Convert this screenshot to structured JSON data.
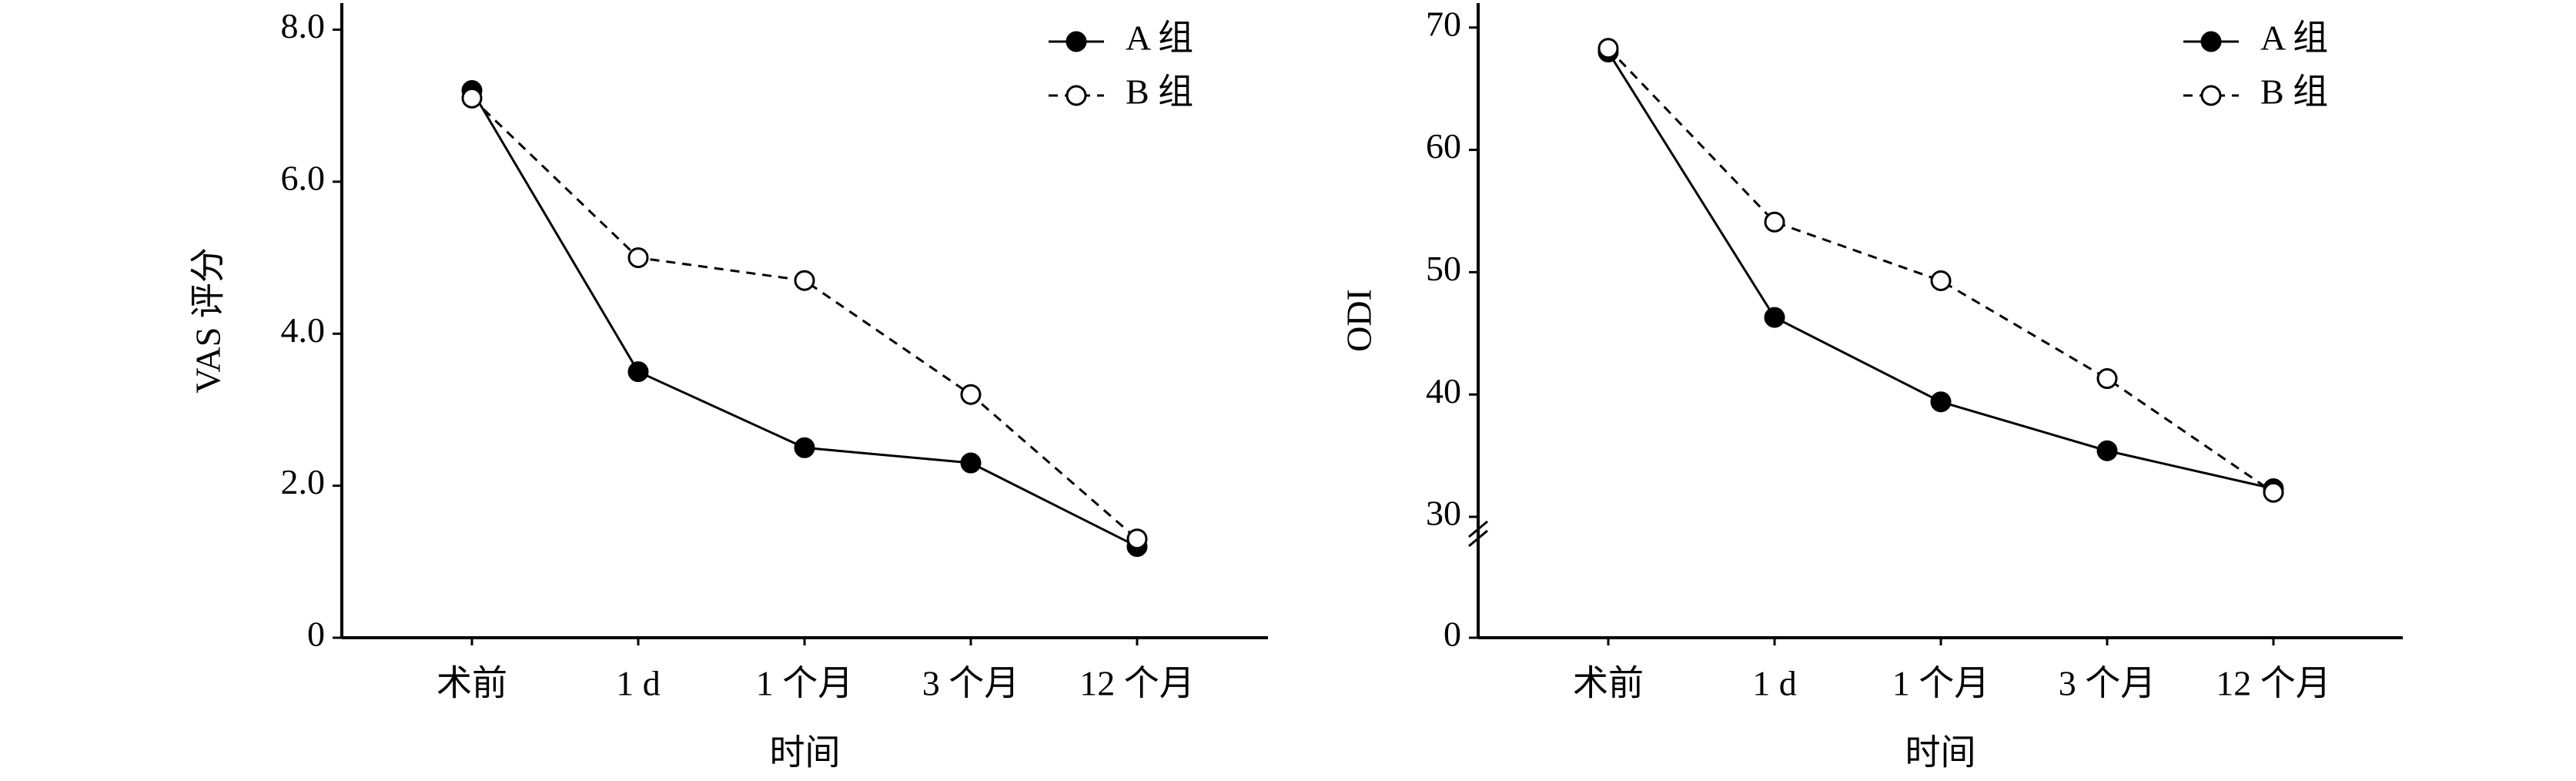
{
  "chart_data": [
    {
      "type": "line",
      "xlabel": "时间",
      "ylabel": "VAS 评分",
      "categories": [
        "术前",
        "1 d",
        "1 个月",
        "3 个月",
        "12 个月"
      ],
      "series": [
        {
          "name": "A 组",
          "color": "#000000",
          "marker": "filled",
          "dashed": false,
          "values": [
            7.2,
            3.5,
            2.5,
            2.3,
            1.2
          ]
        },
        {
          "name": "B 组",
          "color": "#000000",
          "marker": "open",
          "dashed": true,
          "values": [
            7.1,
            5.0,
            4.7,
            3.2,
            1.3
          ]
        }
      ],
      "ylim": [
        0,
        8.35
      ],
      "yticks": [
        0,
        {
          "value": 2,
          "label": "2.0"
        },
        {
          "value": 4,
          "label": "4.0"
        },
        {
          "value": 6,
          "label": "6.0"
        },
        {
          "value": 8,
          "label": "8.0"
        }
      ],
      "legend": "upper right",
      "grid": false
    },
    {
      "type": "line",
      "xlabel": "时间",
      "ylabel": "ODI",
      "categories": [
        "术前",
        "1 d",
        "1 个月",
        "3 个月",
        "12 个月"
      ],
      "series": [
        {
          "name": "A 组",
          "color": "#000000",
          "marker": "filled",
          "dashed": false,
          "values": [
            68,
            46.3,
            39.4,
            35.4,
            32.3
          ]
        },
        {
          "name": "B 组",
          "color": "#000000",
          "marker": "open",
          "dashed": true,
          "values": [
            68.3,
            54.1,
            49.3,
            41.3,
            32.0
          ]
        }
      ],
      "ylim": [
        0,
        72
      ],
      "axis_break": [
        0,
        30
      ],
      "yticks": [
        0,
        30,
        40,
        50,
        60,
        70
      ],
      "legend": "upper right",
      "grid": false
    }
  ]
}
